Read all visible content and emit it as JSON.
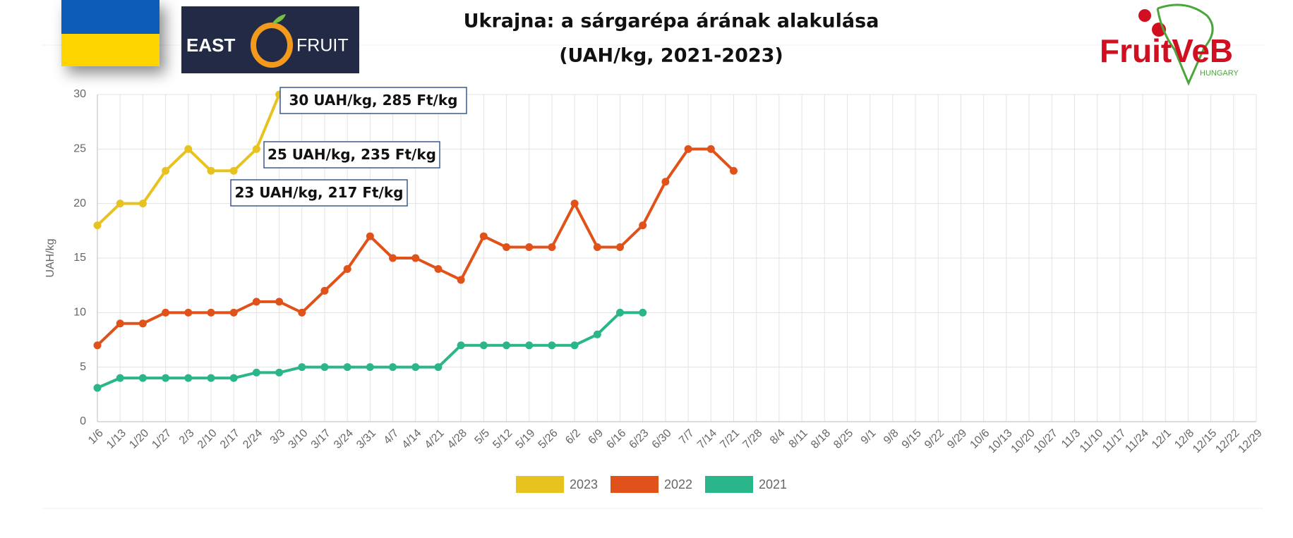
{
  "logos": {
    "east_fruit": [
      "EAST",
      "FRUIT"
    ],
    "fruitveb": "FruitVeB",
    "fruitveb_sub": "HUNGARY"
  },
  "chart_data": {
    "type": "line",
    "title": [
      "Ukrajna: a sárgarépa árának alakulása",
      "(UAH/kg, 2021-2023)"
    ],
    "y_label": "UAH/kg",
    "categories": [
      "1/6",
      "1/13",
      "1/20",
      "1/27",
      "2/3",
      "2/10",
      "2/17",
      "2/24",
      "3/3",
      "3/10",
      "3/17",
      "3/24",
      "3/31",
      "4/7",
      "4/14",
      "4/21",
      "4/28",
      "5/5",
      "5/12",
      "5/19",
      "5/26",
      "6/2",
      "6/9",
      "6/16",
      "6/23",
      "6/30",
      "7/7",
      "7/14",
      "7/21",
      "7/28",
      "8/4",
      "8/11",
      "8/18",
      "8/25",
      "9/1",
      "9/8",
      "9/15",
      "9/22",
      "9/29",
      "10/6",
      "10/13",
      "10/20",
      "10/27",
      "11/3",
      "11/10",
      "11/17",
      "11/24",
      "12/1",
      "12/8",
      "12/15",
      "12/22",
      "12/29"
    ],
    "series": [
      {
        "name": "2023",
        "color": "#e8c31f",
        "values": [
          18,
          20,
          20,
          23,
          25,
          23,
          23,
          25,
          30,
          null,
          null,
          null,
          null,
          null,
          null,
          null,
          null,
          null,
          null,
          null,
          null,
          null,
          null,
          null,
          null,
          null,
          null,
          null,
          null,
          null,
          null,
          null,
          null,
          null,
          null,
          null,
          null,
          null,
          null,
          null,
          null,
          null,
          null,
          null,
          null,
          null,
          null,
          null,
          null,
          null,
          null,
          null
        ]
      },
      {
        "name": "2022",
        "color": "#e0521a",
        "values": [
          7,
          9,
          9,
          10,
          10,
          10,
          10,
          11,
          11,
          10,
          12,
          14,
          17,
          15,
          15,
          14,
          13,
          17,
          16,
          16,
          16,
          20,
          16,
          16,
          18,
          22,
          25,
          25,
          23,
          null,
          null,
          null,
          null,
          null,
          null,
          null,
          null,
          null,
          null,
          null,
          null,
          null,
          null,
          null,
          null,
          null,
          null,
          null,
          null,
          null,
          null,
          null
        ]
      },
      {
        "name": "2021",
        "color": "#2bb58a",
        "values": [
          3.1,
          4,
          4,
          4,
          4,
          4,
          4,
          4.5,
          4.5,
          5,
          5,
          5,
          5,
          5,
          5,
          5,
          7,
          7,
          7,
          7,
          7,
          7,
          8,
          10,
          10,
          null,
          null,
          null,
          null,
          null,
          null,
          null,
          null,
          null,
          null,
          null,
          null,
          null,
          null,
          null,
          null,
          null,
          null,
          null,
          null,
          null,
          null,
          null,
          null,
          null,
          null,
          null
        ]
      }
    ],
    "ylim": [
      0,
      30
    ],
    "yticks": [
      0,
      5,
      10,
      15,
      20,
      25,
      30
    ],
    "grid": true,
    "legend": "bottom",
    "annotations": [
      "30 UAH/kg, 285 Ft/kg",
      "25 UAH/kg, 235 Ft/kg",
      "23 UAH/kg, 217 Ft/kg"
    ]
  }
}
